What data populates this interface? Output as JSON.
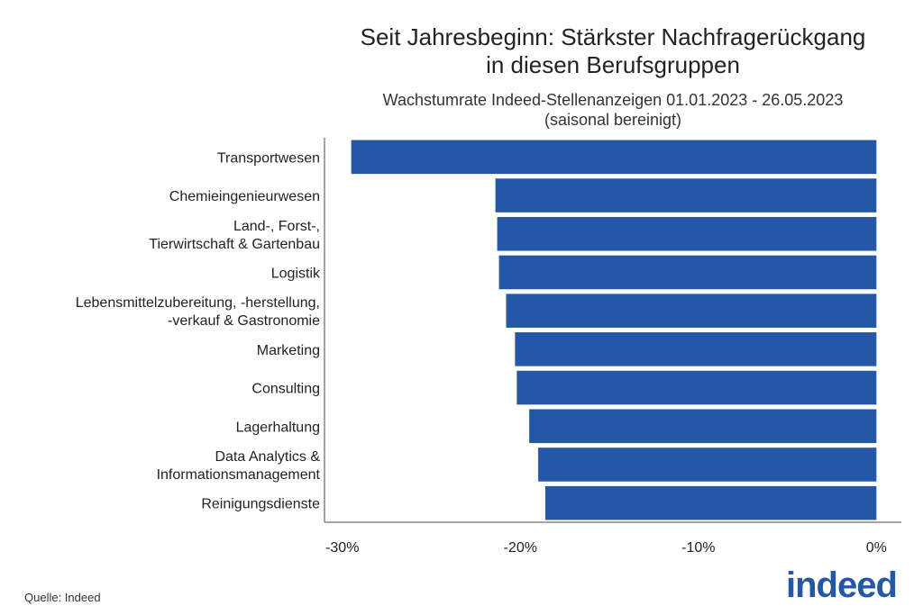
{
  "chart_data": {
    "type": "bar",
    "orientation": "horizontal",
    "title": "Seit Jahresbeginn: Stärkster Nachfragerückgang in diesen Berufsgruppen",
    "title_lines": [
      "Seit Jahresbeginn: Stärkster Nachfragerückgang",
      "in diesen Berufsgruppen"
    ],
    "subtitle_lines": [
      "Wachstumrate Indeed-Stellenanzeigen 01.01.2023 - 26.05.2023",
      "(saisonal bereinigt)"
    ],
    "categories": [
      [
        "Transportwesen"
      ],
      [
        "Chemieingenieurwesen"
      ],
      [
        "Land-, Forst-,",
        "Tierwirtschaft & Gartenbau"
      ],
      [
        "Logistik"
      ],
      [
        "Lebensmittelzubereitung, -herstellung,",
        "-verkauf & Gastronomie"
      ],
      [
        "Marketing"
      ],
      [
        "Consulting"
      ],
      [
        "Lagerhaltung"
      ],
      [
        "Data Analytics &",
        "Informationsmanagement"
      ],
      [
        "Reinigungsdienste"
      ]
    ],
    "values": [
      -29.5,
      -21.4,
      -21.3,
      -21.2,
      -20.8,
      -20.3,
      -20.2,
      -19.5,
      -19.0,
      -18.6
    ],
    "unit": "%",
    "xlim": [
      -31.0,
      1.4
    ],
    "xticks": [
      -30,
      -20,
      -10,
      0
    ],
    "xtick_labels": [
      "-30%",
      "-20%",
      "-10%",
      "0%"
    ],
    "grid": false,
    "bar_color": "#2557a7"
  },
  "footer": {
    "source": "Quelle: Indeed",
    "logo": "indeed"
  }
}
